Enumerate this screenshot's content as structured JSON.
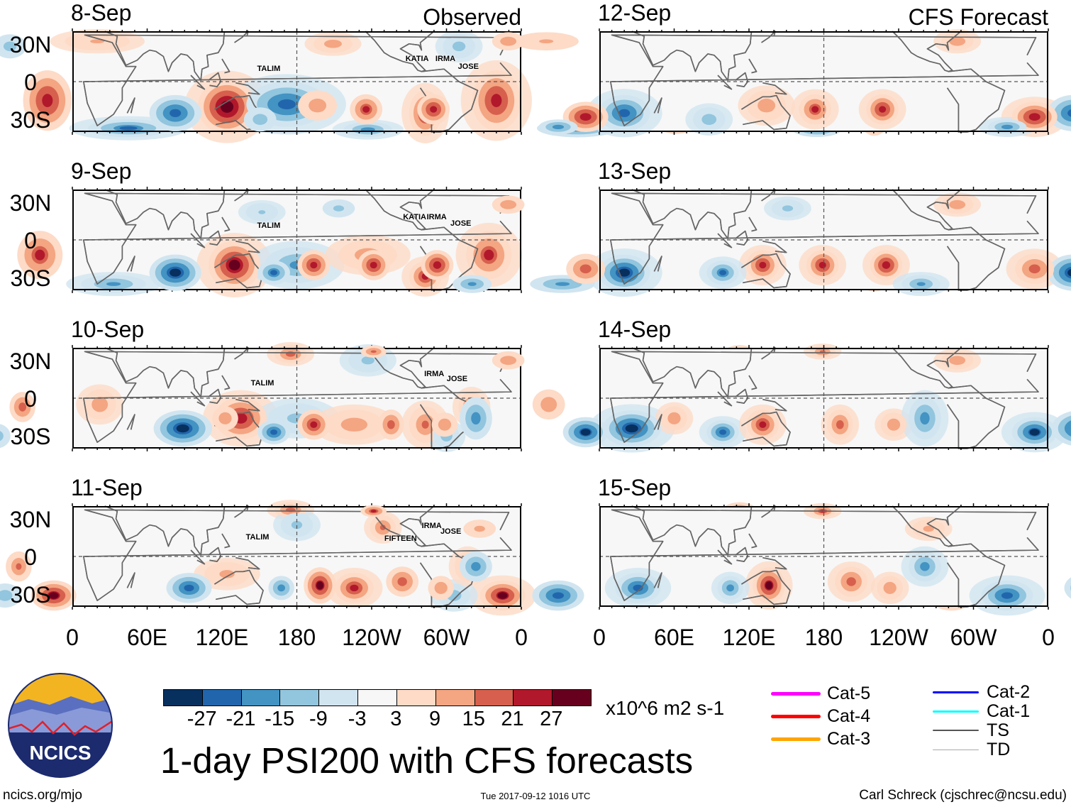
{
  "header": {
    "observed_label": "Observed",
    "forecast_label": "CFS Forecast"
  },
  "axes": {
    "lat_labels": [
      "30N",
      "0",
      "30S"
    ],
    "lon_labels": [
      "0",
      "60E",
      "120E",
      "180",
      "120W",
      "60W",
      "0"
    ]
  },
  "colorbar": {
    "colors": [
      "#08305e",
      "#2166ac",
      "#4393c3",
      "#92c5de",
      "#d1e5f0",
      "#f7f7f7",
      "#fddbc7",
      "#f4a582",
      "#d6604d",
      "#b2182b",
      "#67001f"
    ],
    "labels": [
      "-27",
      "-21",
      "-15",
      "-9",
      "-3",
      "3",
      "9",
      "15",
      "21",
      "27"
    ],
    "units": "x10^6 m2 s-1"
  },
  "title": "1-day PSI200 with CFS forecasts",
  "legend": [
    {
      "label": "Cat-5",
      "color": "#ff00ff"
    },
    {
      "label": "Cat-4",
      "color": "#ff0000"
    },
    {
      "label": "Cat-3",
      "color": "#ffa500"
    },
    {
      "label": "Cat-2",
      "color": "#0000ff"
    },
    {
      "label": "Cat-1",
      "color": "#00ffff"
    },
    {
      "label": "TS",
      "color": "#555555"
    },
    {
      "label": "TD",
      "color": "#aaaaaa"
    }
  ],
  "logo": {
    "text": "NCICS"
  },
  "footer": {
    "left": "ncics.org/mjo",
    "center": "Tue 2017-09-12 1016 UTC",
    "right": "Carl Schreck (cjschrec@ncsu.edu)"
  },
  "chart_data": {
    "type": "heatmap",
    "variable": "200-hPa streamfunction anomaly",
    "units": "x10^6 m2 s-1",
    "lon_range": [
      0,
      360
    ],
    "lat_range": [
      -40,
      40
    ],
    "levels": [
      -27,
      -21,
      -15,
      -9,
      -3,
      3,
      9,
      15,
      21,
      27
    ],
    "blob_format": "[lon, lat, peak_value, lon_halfwidth_deg, lat_halfwidth_deg]",
    "panels": [
      {
        "date": "8-Sep",
        "kind": "observed",
        "anomalies": [
          [
            124,
            -20,
            33,
            18,
            18
          ],
          [
            172,
            -18,
            -26,
            25,
            15
          ],
          [
            283,
            -25,
            25,
            10,
            15
          ],
          [
            340,
            -15,
            26,
            15,
            20
          ],
          [
            45,
            -37,
            -22,
            25,
            6
          ],
          [
            237,
            -38,
            -20,
            15,
            5
          ],
          [
            209,
            30,
            14,
            12,
            6
          ],
          [
            310,
            28,
            -13,
            10,
            8
          ],
          [
            20,
            32,
            10,
            20,
            6
          ]
        ],
        "storms": [
          {
            "name": "TALIM",
            "lon": 147,
            "lat": 10
          },
          {
            "name": "KATIA",
            "lon": 266,
            "lat": 18
          },
          {
            "name": "IRMA",
            "lon": 290,
            "lat": 18
          },
          {
            "name": "JOSE",
            "lon": 308,
            "lat": 12
          }
        ]
      },
      {
        "date": "9-Sep",
        "kind": "observed",
        "anomalies": [
          [
            130,
            -20,
            30,
            16,
            16
          ],
          [
            180,
            -20,
            -18,
            20,
            12
          ],
          [
            237,
            -12,
            14,
            18,
            10
          ],
          [
            283,
            -29,
            24,
            10,
            10
          ],
          [
            334,
            -12,
            22,
            14,
            16
          ],
          [
            33,
            -35,
            -18,
            20,
            6
          ],
          [
            152,
            22,
            -10,
            10,
            6
          ]
        ],
        "storms": [
          {
            "name": "TALIM",
            "lon": 147,
            "lat": 11
          },
          {
            "name": "KATIA",
            "lon": 264,
            "lat": 18
          },
          {
            "name": "IRMA",
            "lon": 283,
            "lat": 18
          },
          {
            "name": "JOSE",
            "lon": 302,
            "lat": 13
          }
        ]
      },
      {
        "date": "10-Sep",
        "kind": "observed",
        "anomalies": [
          [
            135,
            -16,
            27,
            16,
            14
          ],
          [
            180,
            -16,
            -12,
            18,
            10
          ],
          [
            226,
            -21,
            14,
            18,
            10
          ],
          [
            175,
            35,
            20,
            10,
            6
          ],
          [
            237,
            30,
            -12,
            12,
            8
          ],
          [
            283,
            -21,
            17,
            10,
            12
          ],
          [
            320,
            -7,
            20,
            8,
            10
          ],
          [
            22,
            -5,
            15,
            10,
            10
          ],
          [
            300,
            -30,
            -14,
            8,
            8
          ]
        ],
        "storms": [
          {
            "name": "TALIM",
            "lon": 142,
            "lat": 12
          },
          {
            "name": "IRMA",
            "lon": 281,
            "lat": 19
          },
          {
            "name": "JOSE",
            "lon": 299,
            "lat": 15
          }
        ]
      },
      {
        "date": "11-Sep",
        "kind": "observed",
        "anomalies": [
          [
            226,
            -25,
            24,
            12,
            10
          ],
          [
            345,
            -31,
            28,
            14,
            10
          ],
          [
            175,
            37,
            20,
            10,
            5
          ],
          [
            124,
            -14,
            12,
            14,
            8
          ],
          [
            306,
            -31,
            -14,
            10,
            8
          ],
          [
            317,
            -8,
            17,
            8,
            10
          ],
          [
            249,
            23,
            18,
            8,
            8
          ],
          [
            180,
            25,
            -12,
            10,
            8
          ]
        ],
        "storms": [
          {
            "name": "TALIM",
            "lon": 138,
            "lat": 15
          },
          {
            "name": "FIFTEEN",
            "lon": 249,
            "lat": 14
          },
          {
            "name": "IRMA",
            "lon": 279,
            "lat": 24
          },
          {
            "name": "JOSE",
            "lon": 294,
            "lat": 20
          }
        ]
      },
      {
        "date": "12-Sep",
        "kind": "forecast",
        "anomalies": [
          [
            20,
            -25,
            -26,
            16,
            12
          ],
          [
            173,
            -22,
            22,
            10,
            10
          ],
          [
            227,
            -22,
            26,
            10,
            10
          ],
          [
            349,
            -28,
            27,
            14,
            10
          ],
          [
            327,
            -36,
            -20,
            12,
            5
          ],
          [
            287,
            32,
            15,
            10,
            6
          ],
          [
            134,
            -19,
            14,
            12,
            10
          ],
          [
            88,
            -30,
            -14,
            10,
            8
          ]
        ],
        "storms": []
      },
      {
        "date": "13-Sep",
        "kind": "forecast",
        "anomalies": [
          [
            20,
            -26,
            -30,
            16,
            12
          ],
          [
            131,
            -20,
            25,
            10,
            10
          ],
          [
            179,
            -20,
            25,
            10,
            10
          ],
          [
            230,
            -20,
            27,
            10,
            10
          ],
          [
            99,
            -26,
            -22,
            10,
            8
          ],
          [
            258,
            -35,
            -18,
            12,
            6
          ],
          [
            349,
            -23,
            20,
            12,
            10
          ],
          [
            287,
            28,
            15,
            10,
            6
          ],
          [
            151,
            25,
            -12,
            10,
            6
          ]
        ],
        "storms": []
      },
      {
        "date": "14-Sep",
        "kind": "forecast",
        "anomalies": [
          [
            26,
            -24,
            -30,
            18,
            12
          ],
          [
            99,
            -27,
            -25,
            10,
            8
          ],
          [
            131,
            -21,
            24,
            10,
            10
          ],
          [
            193,
            -21,
            20,
            8,
            10
          ],
          [
            236,
            -21,
            15,
            8,
            8
          ],
          [
            261,
            -16,
            -20,
            10,
            14
          ],
          [
            349,
            -27,
            -28,
            14,
            10
          ],
          [
            287,
            30,
            15,
            10,
            6
          ],
          [
            179,
            37,
            18,
            8,
            4
          ],
          [
            60,
            -16,
            15,
            8,
            8
          ]
        ],
        "storms": []
      },
      {
        "date": "15-Sep",
        "kind": "forecast",
        "anomalies": [
          [
            31,
            -25,
            -25,
            14,
            10
          ],
          [
            136,
            -23,
            28,
            10,
            12
          ],
          [
            105,
            -25,
            -20,
            8,
            8
          ],
          [
            202,
            -20,
            20,
            10,
            10
          ],
          [
            233,
            -25,
            15,
            8,
            8
          ],
          [
            261,
            -8,
            -20,
            10,
            10
          ],
          [
            327,
            -31,
            -26,
            16,
            10
          ],
          [
            179,
            36,
            22,
            8,
            4
          ],
          [
            264,
            22,
            12,
            10,
            6
          ]
        ],
        "storms": []
      }
    ]
  }
}
